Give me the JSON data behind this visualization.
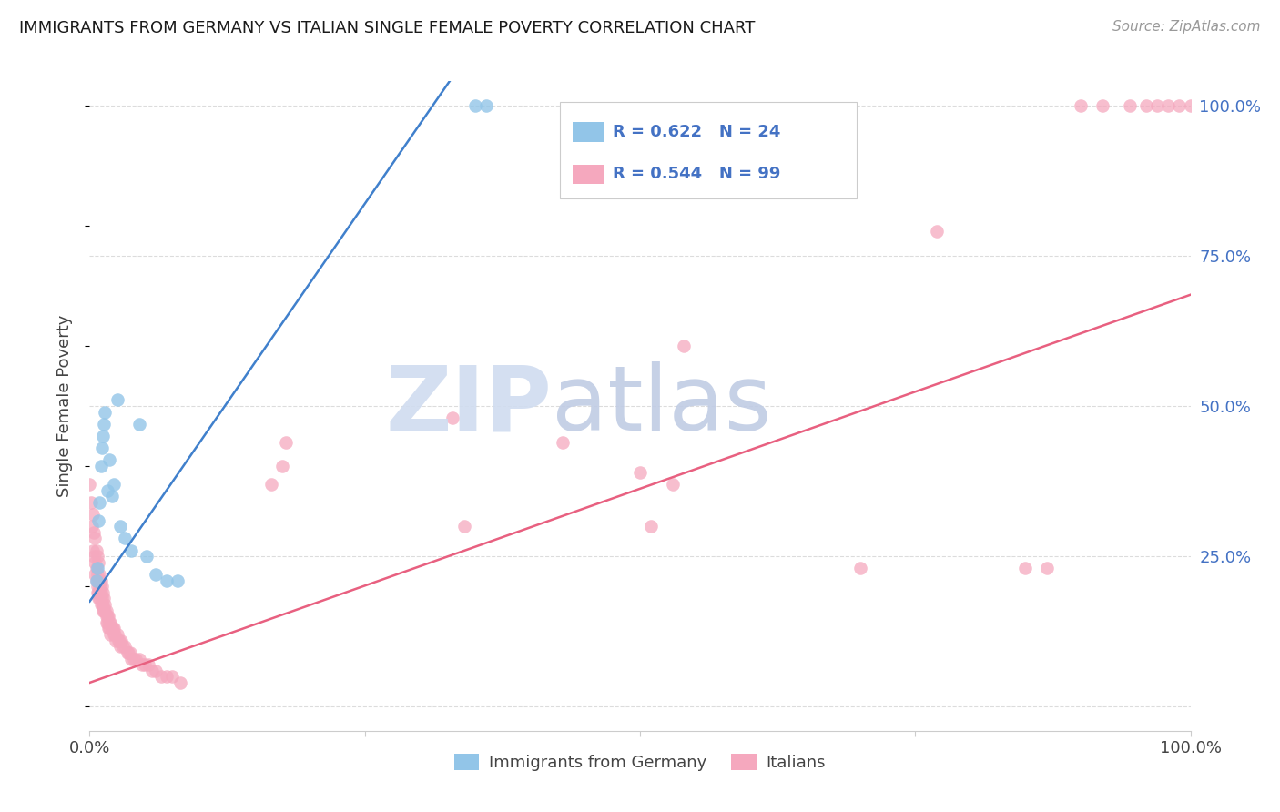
{
  "title": "IMMIGRANTS FROM GERMANY VS ITALIAN SINGLE FEMALE POVERTY CORRELATION CHART",
  "source": "Source: ZipAtlas.com",
  "ylabel": "Single Female Poverty",
  "xlim": [
    0.0,
    1.0
  ],
  "ylim": [
    -0.04,
    1.04
  ],
  "blue_R": 0.622,
  "blue_N": 24,
  "pink_R": 0.544,
  "pink_N": 99,
  "blue_color": "#92C5E8",
  "pink_color": "#F5A8BE",
  "blue_line_color": "#4080CC",
  "pink_line_color": "#E86080",
  "legend_R_color": "#4472C4",
  "watermark_zip_color": "#D0DCF0",
  "watermark_atlas_color": "#C0CCE4",
  "blue_x": [
    0.006,
    0.007,
    0.008,
    0.009,
    0.01,
    0.011,
    0.012,
    0.013,
    0.014,
    0.016,
    0.018,
    0.02,
    0.022,
    0.025,
    0.028,
    0.032,
    0.038,
    0.045,
    0.052,
    0.06,
    0.07,
    0.08,
    0.35,
    0.36
  ],
  "blue_y": [
    0.21,
    0.23,
    0.31,
    0.34,
    0.4,
    0.43,
    0.45,
    0.47,
    0.49,
    0.36,
    0.41,
    0.35,
    0.37,
    0.51,
    0.3,
    0.28,
    0.26,
    0.47,
    0.25,
    0.22,
    0.21,
    0.21,
    1.0,
    1.0
  ],
  "pink_x": [
    0.0,
    0.001,
    0.002,
    0.003,
    0.003,
    0.004,
    0.004,
    0.005,
    0.005,
    0.005,
    0.006,
    0.006,
    0.006,
    0.007,
    0.007,
    0.007,
    0.007,
    0.008,
    0.008,
    0.008,
    0.008,
    0.009,
    0.009,
    0.009,
    0.01,
    0.01,
    0.01,
    0.011,
    0.011,
    0.011,
    0.012,
    0.012,
    0.012,
    0.013,
    0.013,
    0.014,
    0.014,
    0.015,
    0.015,
    0.015,
    0.016,
    0.016,
    0.017,
    0.017,
    0.018,
    0.018,
    0.019,
    0.019,
    0.02,
    0.021,
    0.022,
    0.022,
    0.023,
    0.024,
    0.025,
    0.026,
    0.027,
    0.028,
    0.029,
    0.03,
    0.032,
    0.034,
    0.035,
    0.037,
    0.038,
    0.04,
    0.042,
    0.045,
    0.048,
    0.05,
    0.053,
    0.057,
    0.06,
    0.065,
    0.07,
    0.075,
    0.082,
    0.165,
    0.175,
    0.178,
    0.33,
    0.34,
    0.43,
    0.5,
    0.51,
    0.53,
    0.54,
    0.7,
    0.77,
    0.85,
    0.87,
    0.9,
    0.92,
    0.945,
    0.96,
    0.97,
    0.98,
    0.99,
    1.0
  ],
  "pink_y": [
    0.37,
    0.34,
    0.3,
    0.26,
    0.32,
    0.29,
    0.25,
    0.24,
    0.28,
    0.22,
    0.26,
    0.23,
    0.21,
    0.25,
    0.22,
    0.2,
    0.19,
    0.24,
    0.21,
    0.19,
    0.18,
    0.22,
    0.2,
    0.18,
    0.21,
    0.19,
    0.17,
    0.2,
    0.18,
    0.17,
    0.19,
    0.17,
    0.16,
    0.18,
    0.16,
    0.17,
    0.16,
    0.16,
    0.15,
    0.14,
    0.15,
    0.14,
    0.15,
    0.13,
    0.14,
    0.13,
    0.14,
    0.12,
    0.13,
    0.13,
    0.13,
    0.12,
    0.12,
    0.11,
    0.12,
    0.11,
    0.11,
    0.1,
    0.11,
    0.1,
    0.1,
    0.09,
    0.09,
    0.09,
    0.08,
    0.08,
    0.08,
    0.08,
    0.07,
    0.07,
    0.07,
    0.06,
    0.06,
    0.05,
    0.05,
    0.05,
    0.04,
    0.37,
    0.4,
    0.44,
    0.48,
    0.3,
    0.44,
    0.39,
    0.3,
    0.37,
    0.6,
    0.23,
    0.79,
    0.23,
    0.23,
    1.0,
    1.0,
    1.0,
    1.0,
    1.0,
    1.0,
    1.0,
    1.0
  ],
  "blue_line_x0": 0.0,
  "blue_line_x1": 0.327,
  "blue_line_y0": 0.175,
  "blue_line_y1": 1.04,
  "pink_line_x0": 0.0,
  "pink_line_x1": 1.0,
  "pink_line_y0": 0.04,
  "pink_line_y1": 0.685,
  "yticks": [
    0.0,
    0.25,
    0.5,
    0.75,
    1.0
  ],
  "right_yticklabels": [
    "",
    "25.0%",
    "50.0%",
    "75.0%",
    "100.0%"
  ],
  "xticks": [
    0.0,
    0.25,
    0.5,
    0.75,
    1.0
  ],
  "xticklabels_left": "0.0%",
  "xticklabels_right": "100.0%",
  "grid_color": "#DCDCDC",
  "background_color": "#FFFFFF"
}
